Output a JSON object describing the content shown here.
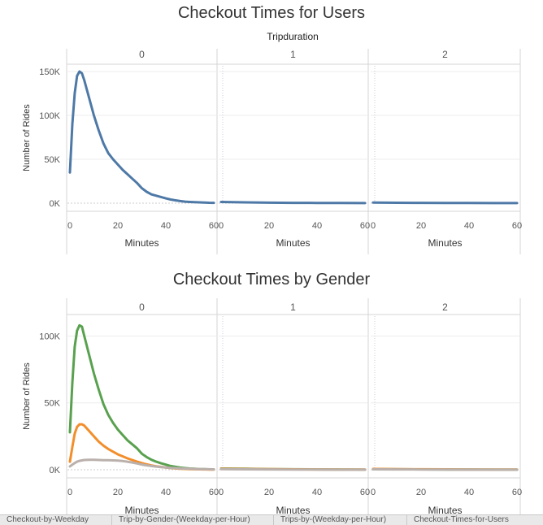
{
  "chart_data": [
    {
      "type": "line",
      "title": "Checkout Times for Users",
      "column_header": "Tripduration",
      "panels": [
        "0",
        "1",
        "2"
      ],
      "xlabel": "Minutes",
      "ylabel": "Number of Rides",
      "xlim": [
        0,
        60
      ],
      "ylim": [
        0,
        150000
      ],
      "xticks": [
        0,
        20,
        40,
        60
      ],
      "yticks": [
        0,
        50000,
        100000,
        150000
      ],
      "ytick_labels": [
        "0K",
        "50K",
        "100K",
        "150K"
      ],
      "series": [
        {
          "color": "#4e79a7",
          "panel_values": [
            {
              "x": [
                0,
                1,
                2,
                3,
                4,
                5,
                6,
                8,
                10,
                12,
                14,
                16,
                18,
                20,
                22,
                24,
                26,
                28,
                30,
                32,
                34,
                36,
                38,
                40,
                42,
                44,
                46,
                48,
                50,
                52,
                54,
                56,
                58,
                60
              ],
              "y": [
                35000,
                90000,
                125000,
                145000,
                150000,
                148000,
                140000,
                120000,
                100000,
                83000,
                68000,
                57000,
                50000,
                44000,
                38000,
                33000,
                28000,
                23000,
                17000,
                13000,
                10000,
                8500,
                7000,
                5500,
                4200,
                3200,
                2400,
                1800,
                1400,
                1100,
                900,
                700,
                500,
                400
              ]
            },
            {
              "x": [
                0,
                10,
                20,
                30,
                40,
                50,
                60
              ],
              "y": [
                1400,
                900,
                600,
                400,
                250,
                150,
                100
              ]
            },
            {
              "x": [
                0,
                10,
                20,
                30,
                40,
                50,
                60
              ],
              "y": [
                700,
                500,
                350,
                250,
                150,
                100,
                80
              ]
            }
          ]
        }
      ]
    },
    {
      "type": "line",
      "title": "Checkout Times by Gender",
      "panels": [
        "0",
        "1",
        "2"
      ],
      "xlabel": "Minutes",
      "ylabel": "Number of Rides",
      "xlim": [
        0,
        60
      ],
      "ylim": [
        0,
        110000
      ],
      "xticks": [
        0,
        20,
        40,
        60
      ],
      "yticks": [
        0,
        50000,
        100000
      ],
      "ytick_labels": [
        "0K",
        "50K",
        "100K"
      ],
      "series": [
        {
          "color": "#59a14f",
          "panel_values": [
            {
              "x": [
                0,
                1,
                2,
                3,
                4,
                5,
                6,
                8,
                10,
                12,
                14,
                16,
                18,
                20,
                22,
                24,
                26,
                28,
                30,
                32,
                34,
                36,
                38,
                40,
                42,
                44,
                46,
                48,
                50,
                52,
                54,
                56,
                58,
                60
              ],
              "y": [
                28000,
                65000,
                92000,
                104000,
                108000,
                107000,
                100000,
                86000,
                72000,
                60000,
                49000,
                41000,
                35000,
                30000,
                26000,
                22000,
                19000,
                16000,
                12000,
                9500,
                7500,
                6000,
                4800,
                3800,
                2800,
                2200,
                1600,
                1200,
                900,
                700,
                500,
                400,
                300,
                250
              ]
            },
            {
              "x": [
                0,
                10,
                20,
                30,
                40,
                50,
                60
              ],
              "y": [
                900,
                700,
                500,
                350,
                220,
                140,
                90
              ]
            },
            {
              "x": [
                0,
                10,
                20,
                30,
                40,
                50,
                60
              ],
              "y": [
                500,
                380,
                280,
                200,
                130,
                90,
                60
              ]
            }
          ]
        },
        {
          "color": "#f28e2b",
          "panel_values": [
            {
              "x": [
                0,
                1,
                2,
                3,
                4,
                5,
                6,
                8,
                10,
                12,
                14,
                16,
                18,
                20,
                22,
                24,
                26,
                28,
                30,
                32,
                34,
                36,
                38,
                40,
                42,
                44,
                46,
                48,
                50,
                52,
                54,
                56,
                58,
                60
              ],
              "y": [
                6000,
                17000,
                27000,
                32000,
                34000,
                34000,
                33000,
                29000,
                25000,
                21000,
                18000,
                15500,
                13500,
                11500,
                10000,
                8500,
                7300,
                6100,
                5000,
                4000,
                3200,
                2600,
                2100,
                1700,
                1300,
                1000,
                800,
                600,
                480,
                380,
                300,
                240,
                200,
                160
              ]
            },
            {
              "x": [
                0,
                10,
                20,
                30,
                40,
                50,
                60
              ],
              "y": [
                700,
                550,
                420,
                320,
                220,
                150,
                100
              ]
            },
            {
              "x": [
                0,
                10,
                20,
                30,
                40,
                50,
                60
              ],
              "y": [
                600,
                480,
                380,
                280,
                200,
                140,
                100
              ]
            }
          ]
        },
        {
          "color": "#bab0ac",
          "panel_values": [
            {
              "x": [
                0,
                1,
                2,
                3,
                4,
                5,
                6,
                8,
                10,
                12,
                14,
                16,
                18,
                20,
                22,
                24,
                26,
                28,
                30,
                32,
                34,
                36,
                38,
                40,
                42,
                44,
                46,
                48,
                50,
                52,
                54,
                56,
                58,
                60
              ],
              "y": [
                2500,
                3800,
                5000,
                6000,
                6600,
                7000,
                7300,
                7500,
                7400,
                7300,
                7200,
                7100,
                7000,
                6800,
                6500,
                6000,
                5400,
                4700,
                3900,
                3300,
                2800,
                2400,
                2000,
                1700,
                1400,
                1200,
                1000,
                850,
                700,
                600,
                500,
                420,
                360,
                300
              ]
            },
            {
              "x": [
                0,
                10,
                20,
                30,
                40,
                50,
                60
              ],
              "y": [
                400,
                300,
                220,
                160,
                110,
                80,
                60
              ]
            },
            {
              "x": [
                0,
                10,
                20,
                30,
                40,
                50,
                60
              ],
              "y": [
                300,
                240,
                180,
                130,
                90,
                70,
                50
              ]
            }
          ]
        }
      ]
    }
  ],
  "sheet_tabs": [
    "Checkout-by-Weekday",
    "Trip-by-Gender-(Weekday-per-Hour)",
    "Trips-by-(Weekday-per-Hour)",
    "Checkout-Times-for-Users"
  ]
}
